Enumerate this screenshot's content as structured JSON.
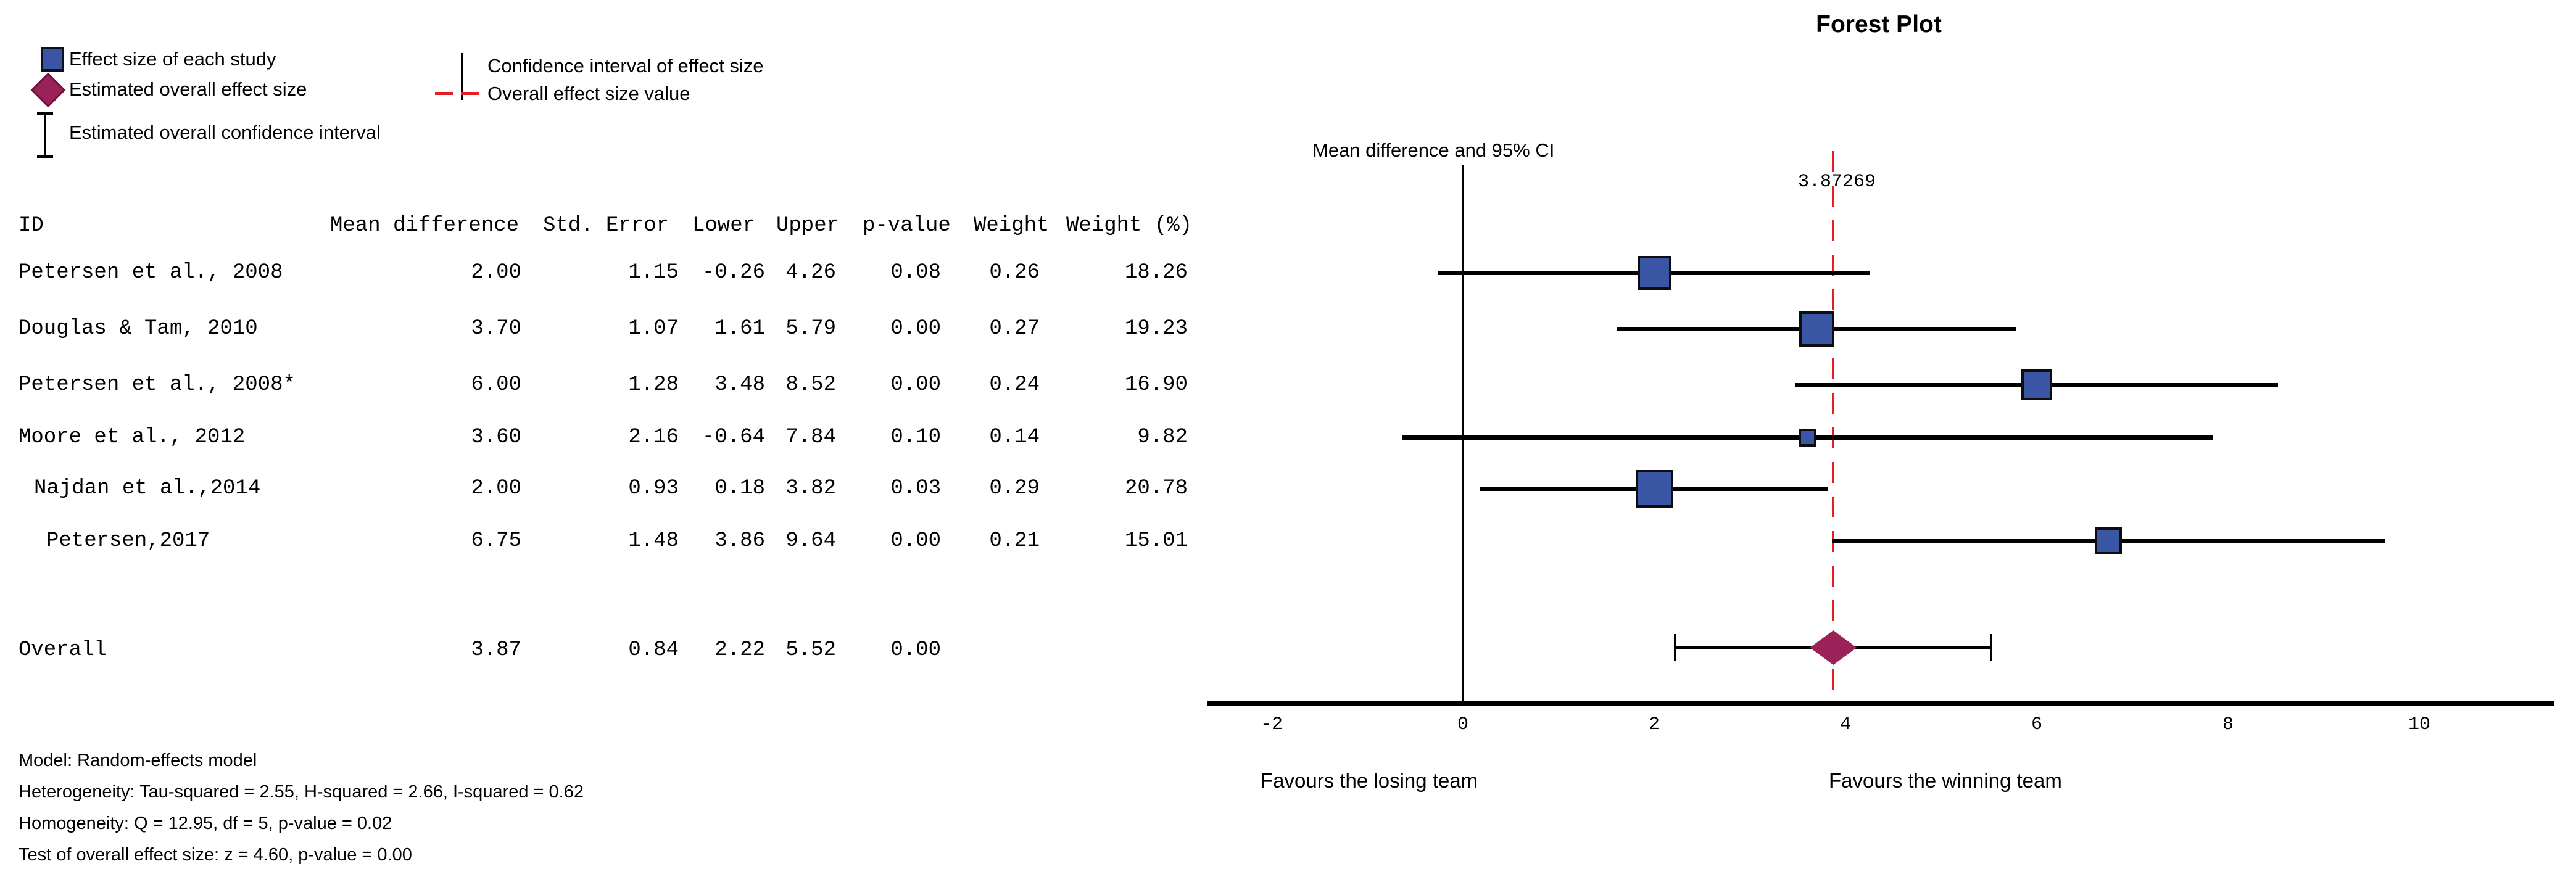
{
  "title": "Forest Plot",
  "legend": {
    "items": [
      {
        "icon": "study-square-icon",
        "label": "Effect size of each study"
      },
      {
        "icon": "overall-diamond-icon",
        "label": "Estimated overall effect size"
      },
      {
        "icon": "overall-ci-icon",
        "label": "Estimated overall confidence interval"
      },
      {
        "icon": "ci-line-icon",
        "label": "Confidence interval of effect size"
      },
      {
        "icon": "overall-value-line-icon",
        "label": "Overall effect size value"
      }
    ]
  },
  "table": {
    "headers": [
      "ID",
      "Mean difference",
      "Std. Error",
      "Lower",
      "Upper",
      "p-value",
      "Weight",
      "Weight (%)"
    ],
    "rows": [
      {
        "id": "Petersen et al., 2008",
        "indent": 0,
        "mean": "2.00",
        "se": "1.15",
        "lower": "-0.26",
        "upper": "4.26",
        "p": "0.08",
        "weight": "0.26",
        "weight_pct": "18.26"
      },
      {
        "id": "Douglas & Tam, 2010",
        "indent": 0,
        "mean": "3.70",
        "se": "1.07",
        "lower": "1.61",
        "upper": "5.79",
        "p": "0.00",
        "weight": "0.27",
        "weight_pct": "19.23"
      },
      {
        "id": "Petersen et al., 2008*",
        "indent": 0,
        "mean": "6.00",
        "se": "1.28",
        "lower": "3.48",
        "upper": "8.52",
        "p": "0.00",
        "weight": "0.24",
        "weight_pct": "16.90"
      },
      {
        "id": "Moore et al., 2012",
        "indent": 0,
        "mean": "3.60",
        "se": "2.16",
        "lower": "-0.64",
        "upper": "7.84",
        "p": "0.10",
        "weight": "0.14",
        "weight_pct": "9.82"
      },
      {
        "id": "Najdan et al.,2014",
        "indent": 1,
        "mean": "2.00",
        "se": "0.93",
        "lower": "0.18",
        "upper": "3.82",
        "p": "0.03",
        "weight": "0.29",
        "weight_pct": "20.78"
      },
      {
        "id": "Petersen,2017",
        "indent": 2,
        "mean": "6.75",
        "se": "1.48",
        "lower": "3.86",
        "upper": "9.64",
        "p": "0.00",
        "weight": "0.21",
        "weight_pct": "15.01"
      }
    ],
    "overall_row": {
      "id": "Overall",
      "mean": "3.87",
      "se": "0.84",
      "lower": "2.22",
      "upper": "5.52",
      "p": "0.00"
    }
  },
  "footnotes": [
    "Model: Random-effects model",
    "Heterogeneity: Tau-squared = 2.55, H-squared = 2.66, I-squared = 0.62",
    "Homogeneity: Q = 12.95, df = 5, p-value = 0.02",
    "Test of overall effect size: z = 4.60, p-value = 0.00"
  ],
  "chart_data": {
    "type": "forest",
    "title": "Forest Plot",
    "axis_header": "Mean difference and 95% CI",
    "x_ticks": [
      -2,
      0,
      2,
      4,
      6,
      8,
      10
    ],
    "xlim": [
      -2.7,
      11.4
    ],
    "grid": false,
    "overall_line_value": 3.87269,
    "overall_line_label": "3.87269",
    "studies": [
      {
        "name": "Petersen et al., 2008",
        "mean": 2.0,
        "lower": -0.26,
        "upper": 4.26,
        "weight": 0.26,
        "weight_pct": 18.26,
        "se": 1.15,
        "p": 0.08
      },
      {
        "name": "Douglas & Tam, 2010",
        "mean": 3.7,
        "lower": 1.61,
        "upper": 5.79,
        "weight": 0.27,
        "weight_pct": 19.23,
        "se": 1.07,
        "p": 0.0
      },
      {
        "name": "Petersen et al., 2008*",
        "mean": 6.0,
        "lower": 3.48,
        "upper": 8.52,
        "weight": 0.24,
        "weight_pct": 16.9,
        "se": 1.28,
        "p": 0.0
      },
      {
        "name": "Moore et al., 2012",
        "mean": 3.6,
        "lower": -0.64,
        "upper": 7.84,
        "weight": 0.14,
        "weight_pct": 9.82,
        "se": 2.16,
        "p": 0.1
      },
      {
        "name": "Najdan et al.,2014",
        "mean": 2.0,
        "lower": 0.18,
        "upper": 3.82,
        "weight": 0.29,
        "weight_pct": 20.78,
        "se": 0.93,
        "p": 0.03
      },
      {
        "name": "Petersen,2017",
        "mean": 6.75,
        "lower": 3.86,
        "upper": 9.64,
        "weight": 0.21,
        "weight_pct": 15.01,
        "se": 1.48,
        "p": 0.0
      }
    ],
    "overall": {
      "mean": 3.87269,
      "lower": 2.22,
      "upper": 5.52
    },
    "x_axis_left_label": "Favours the losing team",
    "x_axis_right_label": "Favours the winning team",
    "colors": {
      "study_marker": "#3a55a4",
      "marker_border": "#0d0d0d",
      "overall_marker": "#9b2159",
      "overall_value_line": "#e31e24",
      "ci_line": "#000000"
    }
  }
}
